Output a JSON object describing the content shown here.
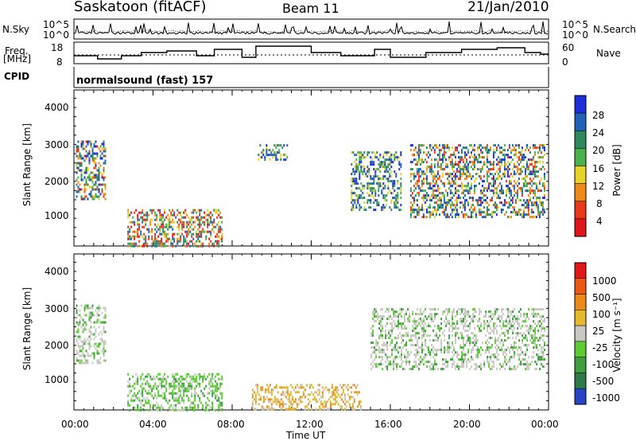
{
  "header": {
    "station": "Saskatoon (fitACF)",
    "beam": "Beam 11",
    "date": "21/Jan/2010"
  },
  "labels": {
    "nsky": "N.Sky",
    "nsearch": "N.Search",
    "freq": "Freq.",
    "freq_unit": "[MHz]",
    "nave": "Nave",
    "cpid": "CPID",
    "cpid_value": "normalsound (fast) 157",
    "noise_ticks_left": [
      "10^5",
      "10^0"
    ],
    "noise_ticks_right": [
      "10^5",
      "10^0"
    ],
    "freq_ticks": [
      "18",
      "8"
    ],
    "nave_ticks": [
      "60",
      "0"
    ]
  },
  "chart_data": [
    {
      "type": "heatmap",
      "panel": "power",
      "ylabel": "Slant Range [km]",
      "ylim": [
        180,
        4500
      ],
      "yticks": [
        "1000",
        "2000",
        "3000",
        "4000"
      ],
      "colorbar_label": "Power [dB]",
      "colorbar_ticks": [
        "4",
        "8",
        "12",
        "16",
        "20",
        "24",
        "28"
      ],
      "colorbar_colors": [
        "#1d2fd8",
        "#1f63b8",
        "#2e8a5e",
        "#4bb24b",
        "#e7d22a",
        "#ee8a1c",
        "#e83a1a",
        "#e0161a"
      ],
      "regions": [
        {
          "t": [
            0.1,
            1.6
          ],
          "r": [
            1500,
            3100
          ],
          "level": "mixed-high"
        },
        {
          "t": [
            2.7,
            7.5
          ],
          "r": [
            180,
            1200
          ],
          "level": "high"
        },
        {
          "t": [
            9.3,
            10.8
          ],
          "r": [
            2600,
            3000
          ],
          "level": "mixed"
        },
        {
          "t": [
            14.0,
            16.5
          ],
          "r": [
            1200,
            2800
          ],
          "level": "mixed"
        },
        {
          "t": [
            17.0,
            23.8
          ],
          "r": [
            1000,
            3000
          ],
          "level": "mixed-high"
        }
      ]
    },
    {
      "type": "heatmap",
      "panel": "velocity",
      "xlabel": "Time UT",
      "ylabel": "Slant Range [km]",
      "ylim": [
        180,
        4500
      ],
      "yticks": [
        "1000",
        "2000",
        "3000",
        "4000"
      ],
      "xticks": [
        "00:00",
        "04:00",
        "08:00",
        "12:00",
        "16:00",
        "20:00",
        "00:00"
      ],
      "colorbar_label": "Velocity [m s⁻¹]",
      "colorbar_ticks": [
        "1000",
        "500",
        "100",
        "25",
        "-25",
        "-100",
        "-500",
        "-1000"
      ],
      "colorbar_colors": [
        "#2845c8",
        "#2e7a4a",
        "#3f9e3f",
        "#5ecb35",
        "#c9c8c2",
        "#e6b82e",
        "#ee8a1c",
        "#ea5a16",
        "#e01818"
      ],
      "regions": [
        {
          "t": [
            0.1,
            1.6
          ],
          "r": [
            1500,
            3100
          ],
          "level": "grey"
        },
        {
          "t": [
            2.7,
            7.5
          ],
          "r": [
            180,
            1200
          ],
          "level": "green"
        },
        {
          "t": [
            9.0,
            14.5
          ],
          "r": [
            180,
            900
          ],
          "level": "yellow"
        },
        {
          "t": [
            15.0,
            23.8
          ],
          "r": [
            1300,
            3000
          ],
          "level": "grey"
        }
      ]
    }
  ]
}
